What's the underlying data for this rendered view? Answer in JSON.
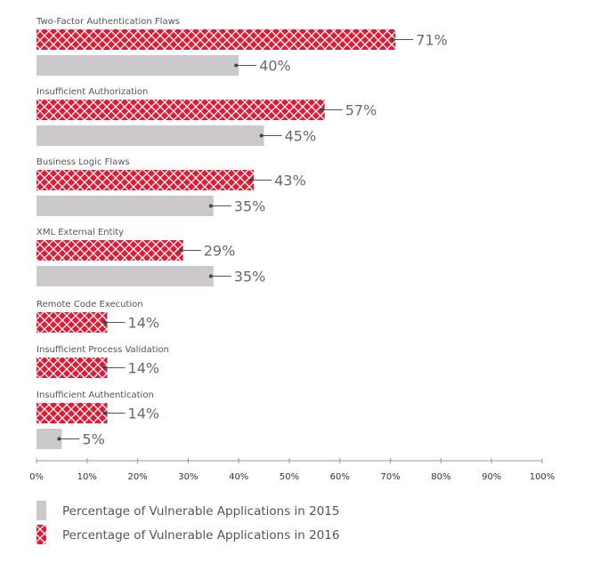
{
  "chart_data": {
    "type": "bar",
    "orientation": "horizontal",
    "title": "",
    "xlabel": "",
    "ylabel": "",
    "xlim": [
      0,
      100
    ],
    "ticks": [
      0,
      10,
      20,
      30,
      40,
      50,
      60,
      70,
      80,
      90,
      100
    ],
    "tick_labels": [
      "0%",
      "10%",
      "20%",
      "30%",
      "40%",
      "50%",
      "60%",
      "70%",
      "80%",
      "90%",
      "100%"
    ],
    "grid": false,
    "legend_position": "bottom-left",
    "categories": [
      "Two-Factor Authentication Flaws",
      "Insufficient Authorization",
      "Business Logic Flaws",
      "XML External Entity",
      "Remote Code Execution",
      "Insufficient Process Validation",
      "Insufficient Authentication"
    ],
    "series": [
      {
        "name": "Percentage of Vulnerable Applications in 2016",
        "values": [
          71,
          57,
          43,
          29,
          14,
          14,
          14
        ],
        "labels": [
          "71%",
          "57%",
          "43%",
          "29%",
          "14%",
          "14%",
          "14%"
        ]
      },
      {
        "name": "Percentage of Vulnerable Applications in 2015",
        "values": [
          40,
          45,
          35,
          35,
          null,
          null,
          5
        ],
        "labels": [
          "40%",
          "45%",
          "35%",
          "35%",
          null,
          null,
          "5%"
        ]
      }
    ],
    "legend": [
      "Percentage of Vulnerable Applications in 2015",
      "Percentage of Vulnerable Applications in 2016"
    ]
  },
  "colors": {
    "bar_2016": "#d6203a",
    "bar_2016_pattern": "#ffffff",
    "bar_2015": "#cbc9c9",
    "leader": "#555555",
    "axis": "#999999"
  }
}
